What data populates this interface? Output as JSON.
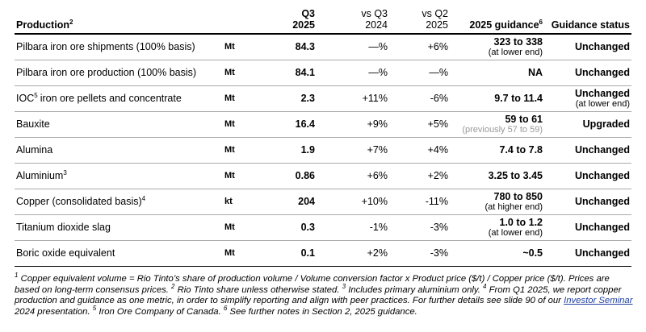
{
  "header": {
    "production": "Production",
    "production_sup": "2",
    "q3": "Q3",
    "q3_year": "2025",
    "vs_q3": "vs Q3",
    "vs_q3_year": "2024",
    "vs_q2": "vs Q2",
    "vs_q2_year": "2025",
    "guidance": "2025 guidance",
    "guidance_sup": "6",
    "status": "Guidance status"
  },
  "table": {
    "rows": [
      {
        "label": "Pilbara iron ore shipments (100% basis)",
        "unit": "Mt",
        "q3": "84.3",
        "vs_q3": "—%",
        "vs_q2": "+6%",
        "guidance": "323 to 338",
        "guidance_note": "(at lower end)",
        "status": "Unchanged"
      },
      {
        "label": "Pilbara iron ore production (100% basis)",
        "unit": "Mt",
        "q3": "84.1",
        "vs_q3": "—%",
        "vs_q2": "—%",
        "guidance": "NA",
        "status": "Unchanged"
      },
      {
        "label": "IOC",
        "sup": "5",
        "label_rest": "iron ore pellets and concentrate",
        "unit": "Mt",
        "q3": "2.3",
        "vs_q3": "+11%",
        "vs_q2": "-6%",
        "guidance": "9.7 to 11.4",
        "status": "Unchanged",
        "status_note": "(at lower end)"
      },
      {
        "label": "Bauxite",
        "unit": "Mt",
        "q3": "16.4",
        "vs_q3": "+9%",
        "vs_q2": "+5%",
        "guidance": "59 to 61",
        "guidance_note": "(previously 57 to 59)",
        "status": "Upgraded"
      },
      {
        "label": "Alumina",
        "unit": "Mt",
        "q3": "1.9",
        "vs_q3": "+7%",
        "vs_q2": "+4%",
        "guidance": "7.4 to 7.8",
        "status": "Unchanged"
      },
      {
        "label": "Aluminium",
        "sup": "3",
        "unit": "Mt",
        "q3": "0.86",
        "vs_q3": "+6%",
        "vs_q2": "+2%",
        "guidance": "3.25 to 3.45",
        "status": "Unchanged"
      },
      {
        "label": "Copper (consolidated basis)",
        "sup": "4",
        "unit": "kt",
        "q3": "204",
        "vs_q3": "+10%",
        "vs_q2": "-11%",
        "guidance": "780 to 850",
        "guidance_note": "(at higher end)",
        "status": "Unchanged"
      },
      {
        "label": "Titanium dioxide slag",
        "unit": "Mt",
        "q3": "0.3",
        "vs_q3": "-1%",
        "vs_q2": "-3%",
        "guidance": "1.0 to 1.2",
        "guidance_note": "(at lower end)",
        "status": "Unchanged"
      },
      {
        "label": "Boric oxide equivalent",
        "unit": "Mt",
        "q3": "0.1",
        "vs_q3": "+2%",
        "vs_q2": "-3%",
        "guidance": "~0.5",
        "status": "Unchanged"
      }
    ]
  },
  "footnotes": [
    {
      "num": "1",
      "text": "Copper equivalent volume = Rio Tinto’s share of production volume / Volume conversion factor x Product price ($/t) / Copper price ($/t). Prices are based on long-term consensus prices."
    },
    {
      "num": "2",
      "text": "Rio Tinto share unless otherwise stated."
    },
    {
      "num": "3",
      "text": "Includes primary aluminium only."
    },
    {
      "num": "4",
      "text": "From Q1 2025, we report copper production and guidance as one metric, in order to simplify reporting and align with peer practices. For further details see slide 90 of our",
      "link": "Investor Seminar",
      "text_after": "2024 presentation."
    },
    {
      "num": "5",
      "text": "Iron Ore Company of Canada."
    },
    {
      "num": "6",
      "text": "See further notes in Section 2, 2025 guidance."
    }
  ]
}
